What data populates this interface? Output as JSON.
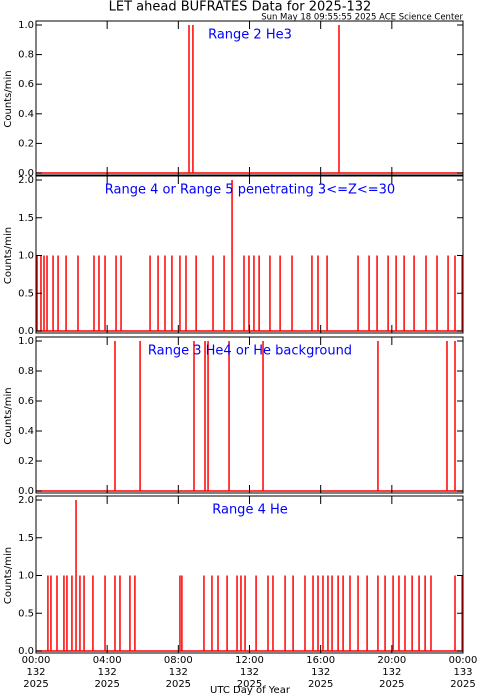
{
  "title": "LET ahead BUFRATES Data for 2025-132",
  "subtitle": "Sun May 18 09:55:55 2025 ACE Science Center",
  "xlabel": "UTC Day of Year",
  "xaxis": {
    "xlim": [
      0,
      24
    ],
    "xticks": [
      {
        "value": 0,
        "label": "00:00"
      },
      {
        "value": 4,
        "label": "04:00"
      },
      {
        "value": 8,
        "label": "08:00"
      },
      {
        "value": 12,
        "label": "12:00"
      },
      {
        "value": 16,
        "label": "16:00"
      },
      {
        "value": 20,
        "label": "20:00"
      },
      {
        "value": 24,
        "label": "00:00"
      }
    ],
    "day_labels": [
      "132",
      "132",
      "132",
      "132",
      "132",
      "132",
      "133"
    ],
    "year_labels": [
      "2025",
      "2025",
      "2025",
      "2025",
      "2025",
      "2025",
      "2025"
    ]
  },
  "chart_data": [
    {
      "type": "bar",
      "annotation": "Range 2 He3",
      "ylabel": "Counts/min",
      "color": "#ff0000",
      "ylim": [
        0,
        1
      ],
      "yticks": [
        {
          "value": 0,
          "label": "0.0"
        },
        {
          "value": 0.2,
          "label": "0.2"
        },
        {
          "value": 0.4,
          "label": "0.4"
        },
        {
          "value": 0.6,
          "label": "0.6"
        },
        {
          "value": 0.8,
          "label": "0.8"
        },
        {
          "value": 1,
          "label": "1.0"
        }
      ],
      "x": [
        8.6,
        8.82,
        17.03
      ],
      "values": [
        1,
        1,
        1
      ]
    },
    {
      "type": "bar",
      "annotation": "Range 4 or Range 5 penetrating 3<=Z<=30",
      "ylabel": "Counts/min",
      "color": "#ff0000",
      "ylim": [
        0,
        2
      ],
      "yticks": [
        {
          "value": 0,
          "label": "0.0"
        },
        {
          "value": 0.5,
          "label": "0.5"
        },
        {
          "value": 1,
          "label": "1.0"
        },
        {
          "value": 1.5,
          "label": "1.5"
        },
        {
          "value": 2,
          "label": "2.0"
        }
      ],
      "x": [
        0.06,
        0.28,
        0.45,
        0.62,
        0.96,
        1.24,
        1.69,
        2.36,
        3.26,
        3.54,
        3.88,
        4.5,
        4.78,
        6.41,
        6.86,
        7.25,
        7.64,
        8.09,
        8.43,
        9.0,
        9.95,
        10.57,
        11.02,
        11.69,
        11.97,
        12.25,
        12.54,
        13.15,
        13.72,
        14.39,
        15.51,
        15.85,
        16.36,
        18.1,
        18.72,
        19.17,
        19.79,
        20.24,
        20.69,
        21.25,
        21.92,
        22.54,
        23.16,
        23.55,
        23.95
      ],
      "values": [
        1,
        1,
        1,
        1,
        1,
        1,
        1,
        1,
        1,
        1,
        1,
        1,
        1,
        1,
        1,
        1,
        1,
        1,
        1,
        1,
        1,
        1,
        2,
        1,
        1,
        1,
        1,
        1,
        1,
        1,
        1,
        1,
        1,
        1,
        1,
        1,
        1,
        1,
        1,
        1,
        1,
        1,
        1,
        1,
        1
      ]
    },
    {
      "type": "bar",
      "annotation": "Range 3 He4 or He background",
      "ylabel": "Counts/min",
      "color": "#ff0000",
      "ylim": [
        0,
        1
      ],
      "yticks": [
        {
          "value": 0,
          "label": "0.0"
        },
        {
          "value": 0.2,
          "label": "0.2"
        },
        {
          "value": 0.4,
          "label": "0.4"
        },
        {
          "value": 0.6,
          "label": "0.6"
        },
        {
          "value": 0.8,
          "label": "0.8"
        },
        {
          "value": 1,
          "label": "1.0"
        }
      ],
      "x": [
        4.44,
        5.85,
        8.88,
        9.5,
        9.67,
        10.85,
        12.76,
        19.22,
        23.1,
        23.55
      ],
      "values": [
        1,
        1,
        1,
        1,
        1,
        1,
        1,
        1,
        1,
        1
      ]
    },
    {
      "type": "bar",
      "annotation": "Range 4 He",
      "ylabel": "Counts/min",
      "color": "#ff0000",
      "ylim": [
        0,
        2
      ],
      "yticks": [
        {
          "value": 0,
          "label": "0.0"
        },
        {
          "value": 0.5,
          "label": "0.5"
        },
        {
          "value": 1,
          "label": "1.0"
        },
        {
          "value": 1.5,
          "label": "1.5"
        },
        {
          "value": 2,
          "label": "2.0"
        }
      ],
      "x": [
        0.67,
        0.84,
        1.18,
        1.57,
        1.74,
        2.02,
        2.25,
        2.47,
        2.7,
        3.2,
        3.88,
        4.44,
        4.72,
        5.28,
        5.56,
        8.09,
        8.2,
        9.44,
        9.89,
        10.23,
        10.74,
        11.3,
        11.52,
        11.75,
        12.37,
        13.04,
        13.32,
        14.0,
        14.45,
        15.12,
        15.57,
        15.85,
        16.13,
        16.41,
        16.64,
        16.98,
        17.26,
        17.65,
        18.1,
        18.61,
        19.22,
        19.62,
        20.07,
        20.4,
        20.74,
        21.14,
        21.53,
        21.87,
        22.2,
        23.55,
        23.95
      ],
      "values": [
        1,
        1,
        1,
        1,
        1,
        1,
        2,
        1,
        1,
        1,
        1,
        1,
        1,
        1,
        1,
        1,
        1,
        1,
        1,
        1,
        1,
        1,
        1,
        1,
        1,
        1,
        1,
        1,
        1,
        1,
        1,
        1,
        1,
        1,
        1,
        1,
        1,
        1,
        1,
        1,
        1,
        1,
        1,
        1,
        1,
        1,
        1,
        1,
        1,
        1,
        1
      ]
    }
  ]
}
